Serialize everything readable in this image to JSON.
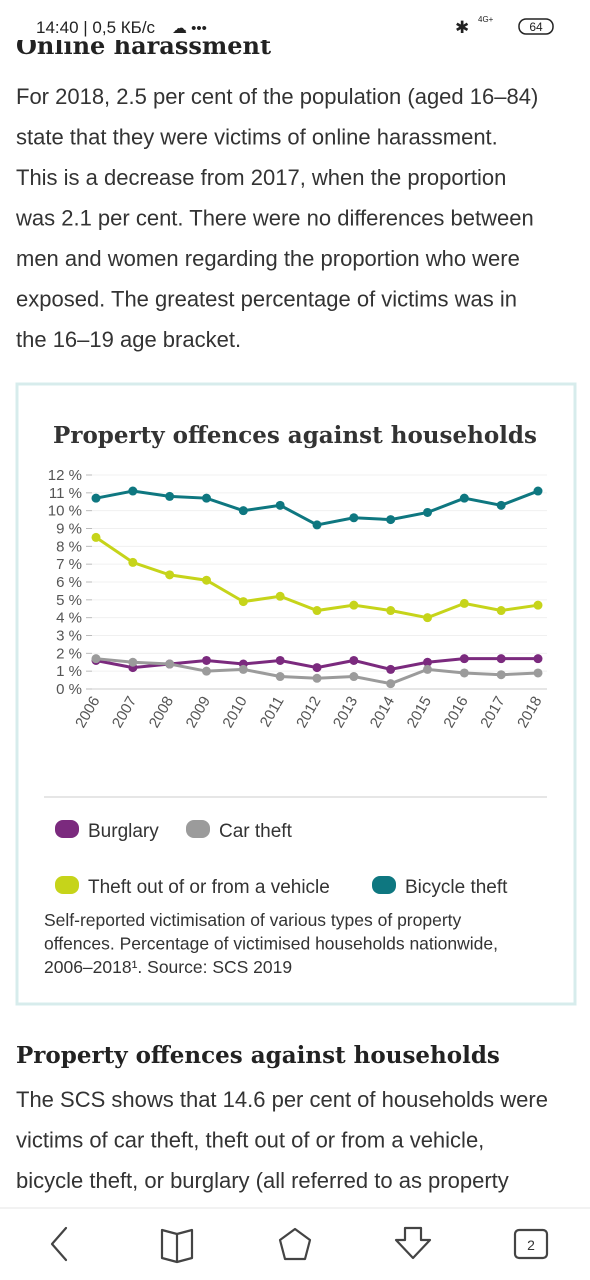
{
  "status_bar": {
    "time": "14:40 | 0,5 КБ/с",
    "network": "4G+",
    "battery": "64"
  },
  "section_heading_1": "Online harassment",
  "paragraph_1": [
    "For 2018, 2.5 per cent of the population (aged 16–84)",
    "state that they were victims of online harassment.",
    "This is a decrease from 2017, when the proportion",
    "was 2.1 per cent. There were no differences between",
    "men and women regarding the proportion who were",
    "exposed. The greatest percentage of victims was in",
    "the 16–19 age bracket."
  ],
  "chart_data": {
    "type": "line",
    "title": "Property offences against households",
    "categories": [
      "2006",
      "2007",
      "2008",
      "2009",
      "2010",
      "2011",
      "2012",
      "2013",
      "2014",
      "2015",
      "2016",
      "2017",
      "2018"
    ],
    "series": [
      {
        "name": "Burglary",
        "color": "#7b2a7e",
        "values": [
          1.6,
          1.2,
          1.4,
          1.6,
          1.4,
          1.6,
          1.2,
          1.6,
          1.1,
          1.5,
          1.7,
          1.7,
          1.7
        ]
      },
      {
        "name": "Car theft",
        "color": "#9b9b9b",
        "values": [
          1.7,
          1.5,
          1.4,
          1.0,
          1.1,
          0.7,
          0.6,
          0.7,
          0.3,
          1.1,
          0.9,
          0.8,
          0.9
        ]
      },
      {
        "name": "Theft out of or from a vehicle",
        "color": "#c6d41a",
        "values": [
          8.5,
          7.1,
          6.4,
          6.1,
          4.9,
          5.2,
          4.4,
          4.7,
          4.4,
          4.0,
          4.8,
          4.4,
          4.7
        ]
      },
      {
        "name": "Bicycle theft",
        "color": "#0e7780",
        "values": [
          10.7,
          11.1,
          10.8,
          10.7,
          10.0,
          10.3,
          9.2,
          9.6,
          9.5,
          9.9,
          10.7,
          10.3,
          11.1
        ]
      }
    ],
    "ylim": [
      0,
      12
    ],
    "yticks": [
      {
        "value": 0,
        "label": "0 %"
      },
      {
        "value": 1,
        "label": "1 %"
      },
      {
        "value": 2,
        "label": "2 %"
      },
      {
        "value": 3,
        "label": "3 %"
      },
      {
        "value": 4,
        "label": "4 %"
      },
      {
        "value": 5,
        "label": "5 %"
      },
      {
        "value": 6,
        "label": "6 %"
      },
      {
        "value": 7,
        "label": "7 %"
      },
      {
        "value": 8,
        "label": "8 %"
      },
      {
        "value": 9,
        "label": "9 %"
      },
      {
        "value": 10,
        "label": "10 %"
      },
      {
        "value": 11,
        "label": "11 %"
      },
      {
        "value": 12,
        "label": "12 %"
      }
    ],
    "grid": true,
    "caption": [
      "Self-reported victimisation of various types of property",
      "offences. Percentage of victimised households nationwide,",
      "2006–2018¹. Source: SCS 2019"
    ]
  },
  "section_heading_2": "Property offences against households",
  "paragraph_2": [
    "The SCS shows that 14.6 per cent of households were",
    "victims of car theft, theft out of or from a vehicle,",
    "bicycle theft, or burglary (all referred to as property"
  ],
  "nav_bar": {
    "tabs_count": "2"
  }
}
